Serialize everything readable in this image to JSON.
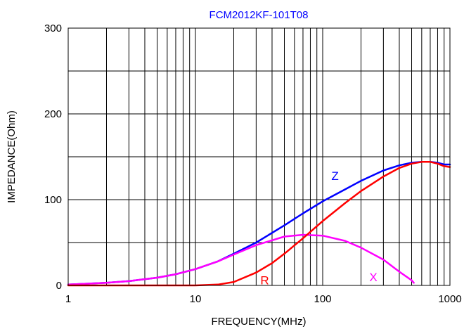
{
  "chart_data": {
    "type": "line",
    "title": "FCM2012KF-101T08",
    "title_color": "#0000ff",
    "xlabel": "FREQUENCY(MHz)",
    "ylabel": "IMPEDANCE(Ohm)",
    "x_scale": "log",
    "xlim": [
      1,
      1000
    ],
    "ylim": [
      0,
      300
    ],
    "x_tick_labels": [
      "1",
      "10",
      "100",
      "1000"
    ],
    "y_tick_labels": [
      "0",
      "100",
      "200",
      "300"
    ],
    "grid": true,
    "series": [
      {
        "name": "Z",
        "color": "#0000ff",
        "x": [
          1,
          2,
          3,
          5,
          7,
          10,
          15,
          20,
          30,
          50,
          70,
          100,
          150,
          200,
          300,
          400,
          500,
          600,
          700,
          800,
          900,
          1000
        ],
        "y": [
          1,
          3,
          5,
          9,
          13,
          19,
          28,
          37,
          50,
          70,
          84,
          98,
          112,
          122,
          134,
          140,
          143,
          144,
          144,
          143,
          141,
          141
        ]
      },
      {
        "name": "R",
        "color": "#ff0000",
        "x": [
          1,
          5,
          10,
          15,
          20,
          30,
          40,
          50,
          70,
          100,
          150,
          200,
          300,
          400,
          500,
          600,
          700,
          800,
          900,
          1000
        ],
        "y": [
          0,
          0,
          0,
          1,
          4,
          15,
          26,
          37,
          55,
          75,
          96,
          110,
          127,
          137,
          142,
          144,
          144,
          142,
          139,
          138
        ]
      },
      {
        "name": "X",
        "color": "#ff00ff",
        "x": [
          1,
          2,
          3,
          5,
          7,
          10,
          15,
          20,
          30,
          50,
          70,
          100,
          150,
          200,
          300,
          400,
          500,
          520
        ],
        "y": [
          1,
          3,
          5,
          9,
          13,
          19,
          28,
          36,
          47,
          57,
          59,
          58,
          52,
          44,
          30,
          16,
          6,
          3
        ]
      }
    ]
  }
}
